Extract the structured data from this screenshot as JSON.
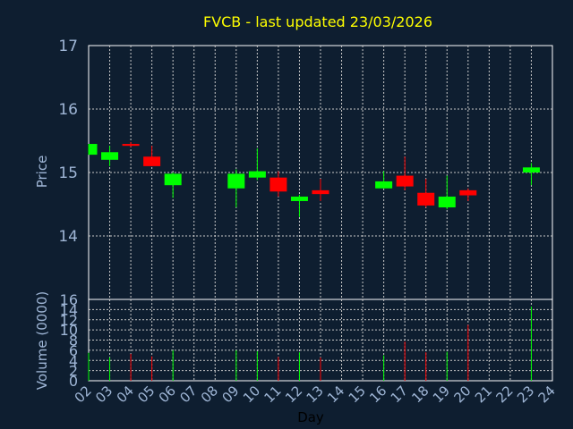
{
  "chart_data": {
    "type": "candlestick",
    "title": "FVCB - last updated 23/03/2026",
    "xlabel": "Day",
    "ylabel_price": "Price",
    "ylabel_volume": "Volume (0000)",
    "x_ticks": [
      "02",
      "03",
      "04",
      "05",
      "06",
      "07",
      "08",
      "09",
      "10",
      "11",
      "12",
      "13",
      "14",
      "15",
      "16",
      "17",
      "18",
      "19",
      "20",
      "21",
      "22",
      "23",
      "24"
    ],
    "price_ylim": [
      13,
      17
    ],
    "price_ticks": [
      14,
      15,
      16,
      17
    ],
    "volume_ylim": [
      0,
      16
    ],
    "volume_ticks": [
      0,
      2,
      4,
      6,
      8,
      10,
      12,
      14,
      16
    ],
    "grid": true,
    "colors": {
      "up": "#00ff00",
      "down": "#ff0000",
      "background": "#0e1e30",
      "plot": "#0e1e30",
      "title": "#ffff00",
      "text": "#9fb6d6"
    },
    "candles": [
      {
        "day": "02",
        "open": 15.28,
        "high": 15.45,
        "low": 15.28,
        "close": 15.45,
        "volume": 5.5
      },
      {
        "day": "03",
        "open": 15.2,
        "high": 15.42,
        "low": 15.1,
        "close": 15.32,
        "volume": 4.6
      },
      {
        "day": "04",
        "open": 15.45,
        "high": 15.48,
        "low": 15.4,
        "close": 15.42,
        "volume": 5.3
      },
      {
        "day": "05",
        "open": 15.25,
        "high": 15.42,
        "low": 15.1,
        "close": 15.1,
        "volume": 4.8
      },
      {
        "day": "06",
        "open": 14.8,
        "high": 15.0,
        "low": 14.6,
        "close": 14.98,
        "volume": 6.0
      },
      {
        "day": "09",
        "open": 14.75,
        "high": 15.05,
        "low": 14.45,
        "close": 14.98,
        "volume": 6.0
      },
      {
        "day": "10",
        "open": 14.92,
        "high": 15.38,
        "low": 14.88,
        "close": 15.02,
        "volume": 5.8
      },
      {
        "day": "11",
        "open": 14.92,
        "high": 15.02,
        "low": 14.62,
        "close": 14.7,
        "volume": 4.7
      },
      {
        "day": "12",
        "open": 14.55,
        "high": 14.65,
        "low": 14.3,
        "close": 14.62,
        "volume": 5.6
      },
      {
        "day": "13",
        "open": 14.72,
        "high": 14.9,
        "low": 14.55,
        "close": 14.66,
        "volume": 4.6
      },
      {
        "day": "16",
        "open": 14.75,
        "high": 15.02,
        "low": 14.75,
        "close": 14.86,
        "volume": 5.0
      },
      {
        "day": "17",
        "open": 14.95,
        "high": 15.25,
        "low": 14.72,
        "close": 14.78,
        "volume": 7.7
      },
      {
        "day": "18",
        "open": 14.68,
        "high": 14.9,
        "low": 14.45,
        "close": 14.48,
        "volume": 5.6
      },
      {
        "day": "19",
        "open": 14.45,
        "high": 14.95,
        "low": 14.42,
        "close": 14.62,
        "volume": 5.7
      },
      {
        "day": "20",
        "open": 14.72,
        "high": 14.75,
        "low": 14.55,
        "close": 14.64,
        "volume": 11.0
      },
      {
        "day": "23",
        "open": 15.0,
        "high": 15.15,
        "low": 14.8,
        "close": 15.08,
        "volume": 14.6
      }
    ]
  }
}
